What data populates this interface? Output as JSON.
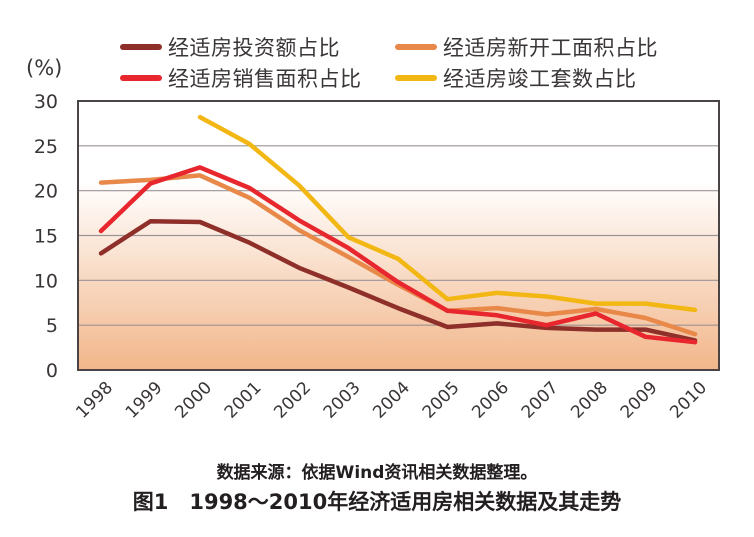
{
  "chart_data": {
    "type": "line",
    "title": "图1　1998～2010年经济适用房相关数据及其走势",
    "source_note": "数据来源：依据Wind资讯相关数据整理。",
    "xlabel": "",
    "ylabel": "(%)",
    "ylim": [
      0,
      30
    ],
    "yticks": [
      0,
      5,
      10,
      15,
      20,
      25,
      30
    ],
    "grid": true,
    "legend_position": "top",
    "categories": [
      "1998",
      "1999",
      "2000",
      "2001",
      "2002",
      "2003",
      "2004",
      "2005",
      "2006",
      "2007",
      "2008",
      "2009",
      "2010"
    ],
    "series": [
      {
        "name": "经适房投资额占比",
        "color": "#8e2f2a",
        "values": [
          13.0,
          16.6,
          16.5,
          14.2,
          11.4,
          9.2,
          6.9,
          4.8,
          5.2,
          4.7,
          4.5,
          4.5,
          3.3
        ]
      },
      {
        "name": "经适房新开工面积占比",
        "color": "#e8894a",
        "values": [
          20.9,
          21.2,
          21.7,
          19.2,
          15.6,
          12.6,
          9.5,
          6.6,
          6.9,
          6.2,
          6.8,
          5.8,
          4.0
        ]
      },
      {
        "name": "经适房销售面积占比",
        "color": "#e8262d",
        "values": [
          15.5,
          20.8,
          22.6,
          20.3,
          16.7,
          13.6,
          9.8,
          6.6,
          6.1,
          5.0,
          6.3,
          3.7,
          3.1
        ]
      },
      {
        "name": "经适房竣工套数占比",
        "color": "#f2b713",
        "values": [
          null,
          null,
          28.2,
          25.2,
          20.6,
          14.8,
          12.4,
          7.9,
          8.6,
          8.2,
          7.4,
          7.4,
          6.7
        ]
      }
    ]
  },
  "colors": {
    "gradient_top": "#ffffff",
    "gradient_bottom": "#f2b68a",
    "gridline": "#9c9494",
    "axis": "#4a4444"
  }
}
